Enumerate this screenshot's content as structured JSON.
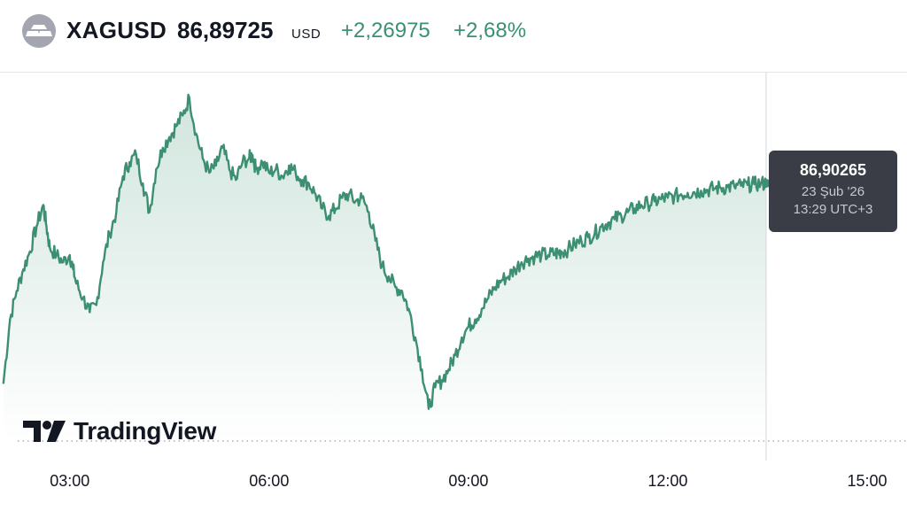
{
  "header": {
    "symbol": "XAGUSD",
    "price": "86,89725",
    "currency": "USD",
    "change": "+2,26975",
    "change_percent": "+2,68%",
    "logo_icon": "silver-bars-icon"
  },
  "tooltip": {
    "price": "86,90265",
    "date": "23 Şub '26",
    "time": "13:29 UTC+3"
  },
  "brand": {
    "name": "TradingView",
    "icon": "tradingview-logo-icon"
  },
  "colors": {
    "line": "#3d8f72",
    "fill_top": "#cfe4dc",
    "fill_bottom": "#ffffff",
    "tooltip_bg": "#3a3d45",
    "positive": "#3d8f72"
  },
  "chart_data": {
    "type": "area",
    "x_tick_labels": [
      "03:00",
      "06:00",
      "09:00",
      "12:00",
      "15:00"
    ],
    "x_ticks_hours": [
      3,
      6,
      9,
      12,
      15
    ],
    "xlim_hours": [
      1.95,
      15.6
    ],
    "ylim": [
      83.3,
      88.45
    ],
    "crosshair_hour": 13.48,
    "series": [
      {
        "x": [
          2.0,
          2.1,
          2.2,
          2.3,
          2.4,
          2.5,
          2.6,
          2.65,
          2.7,
          2.8,
          2.9,
          3.0,
          3.05,
          3.1,
          3.2,
          3.3,
          3.4,
          3.5,
          3.6,
          3.7,
          3.8,
          3.9,
          4.0,
          4.1,
          4.2,
          4.3,
          4.4,
          4.5,
          4.6,
          4.7,
          4.8,
          4.9,
          5.0,
          5.1,
          5.2,
          5.3,
          5.4,
          5.5,
          5.6,
          5.7,
          5.75,
          5.8,
          5.9,
          6.0,
          6.1,
          6.2,
          6.3,
          6.4,
          6.5,
          6.6,
          6.7,
          6.8,
          6.9,
          7.0,
          7.1,
          7.2,
          7.3,
          7.4,
          7.5,
          7.6,
          7.7,
          7.8,
          7.9,
          8.0,
          8.1,
          8.2,
          8.3,
          8.4,
          8.5,
          8.6,
          8.7,
          8.8,
          8.9,
          9.0,
          9.1,
          9.2,
          9.3,
          9.4,
          9.5,
          9.6,
          9.7,
          9.8,
          9.9,
          10.0,
          10.1,
          10.2,
          10.3,
          10.35,
          10.4,
          10.5,
          10.6,
          10.7,
          10.8,
          10.9,
          11.0,
          11.1,
          11.2,
          11.3,
          11.4,
          11.5,
          11.6,
          11.7,
          11.8,
          11.9,
          12.0,
          12.1,
          12.2,
          12.3,
          12.4,
          12.5,
          12.6,
          12.7,
          12.8,
          12.9,
          13.0,
          13.1,
          13.2,
          13.3,
          13.4,
          13.48
        ],
        "y": [
          84.1,
          85.0,
          85.4,
          85.7,
          85.95,
          86.3,
          86.6,
          86.3,
          86.0,
          85.9,
          85.8,
          85.9,
          85.7,
          85.5,
          85.3,
          85.1,
          85.2,
          85.8,
          86.2,
          86.5,
          87.0,
          87.2,
          87.3,
          86.9,
          86.5,
          87.1,
          87.4,
          87.55,
          87.7,
          87.85,
          88.1,
          87.6,
          87.25,
          87.05,
          87.15,
          87.4,
          87.1,
          86.95,
          87.2,
          87.25,
          87.3,
          87.1,
          87.2,
          87.05,
          87.1,
          87.0,
          87.15,
          87.05,
          86.95,
          86.9,
          86.75,
          86.55,
          86.45,
          86.55,
          86.7,
          86.75,
          86.65,
          86.7,
          86.5,
          86.1,
          85.75,
          85.6,
          85.45,
          85.4,
          85.15,
          84.75,
          84.3,
          83.75,
          84.05,
          84.15,
          84.3,
          84.5,
          84.75,
          84.9,
          85.0,
          85.15,
          85.3,
          85.45,
          85.55,
          85.6,
          85.7,
          85.8,
          85.85,
          85.88,
          85.9,
          85.9,
          85.92,
          85.93,
          85.95,
          85.98,
          86.05,
          86.1,
          86.15,
          86.2,
          86.3,
          86.35,
          86.4,
          86.45,
          86.5,
          86.55,
          86.6,
          86.62,
          86.65,
          86.68,
          86.7,
          86.72,
          86.75,
          86.77,
          86.78,
          86.8,
          86.81,
          86.83,
          86.84,
          86.85,
          86.86,
          86.87,
          86.88,
          86.89,
          86.9,
          86.90265
        ]
      }
    ]
  }
}
